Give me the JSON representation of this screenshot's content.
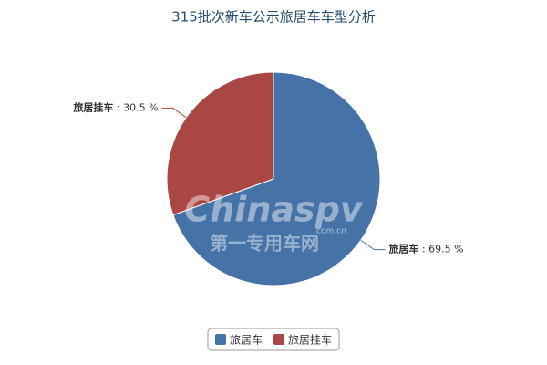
{
  "chart_data": {
    "type": "pie",
    "title": "315批次新车公示旅居车车型分析",
    "categories": [
      "旅居车",
      "旅居挂车"
    ],
    "values": [
      69.5,
      30.5
    ],
    "value_labels": [
      "69.5 %",
      "30.5 %"
    ],
    "label_separator": " : ",
    "colors": [
      "#4572a7",
      "#aa4643"
    ],
    "legend": "bottom",
    "watermark": [
      "Chinaspv",
      "第一专用车网",
      ".com.cn"
    ]
  }
}
